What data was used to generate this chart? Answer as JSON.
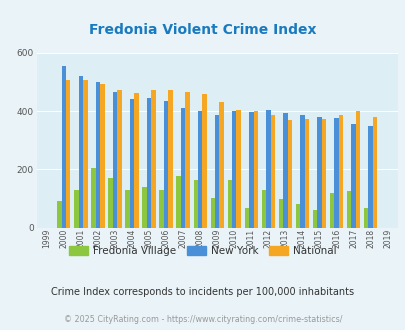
{
  "title": "Fredonia Violent Crime Index",
  "title_color": "#1a7abf",
  "years": [
    1999,
    2000,
    2001,
    2002,
    2003,
    2004,
    2005,
    2006,
    2007,
    2008,
    2009,
    2010,
    2011,
    2012,
    2013,
    2014,
    2015,
    2016,
    2017,
    2018,
    2019
  ],
  "fredonia": [
    0,
    90,
    130,
    205,
    170,
    130,
    140,
    130,
    178,
    162,
    102,
    163,
    68,
    130,
    100,
    83,
    60,
    120,
    125,
    68,
    0
  ],
  "new_york": [
    0,
    555,
    520,
    500,
    465,
    440,
    445,
    435,
    410,
    400,
    388,
    400,
    397,
    405,
    393,
    385,
    380,
    375,
    355,
    350,
    0
  ],
  "national": [
    0,
    507,
    507,
    494,
    473,
    463,
    471,
    474,
    465,
    458,
    430,
    404,
    400,
    387,
    368,
    372,
    373,
    386,
    399,
    379,
    0
  ],
  "fredonia_color": "#8dc63f",
  "newyork_color": "#4a90d9",
  "national_color": "#f5a623",
  "bg_color": "#eaf4f8",
  "plot_bg_color": "#ddeef5",
  "ylim": [
    0,
    600
  ],
  "yticks": [
    0,
    200,
    400,
    600
  ],
  "subtitle": "Crime Index corresponds to incidents per 100,000 inhabitants",
  "subtitle_color": "#333333",
  "footer": "© 2025 CityRating.com - https://www.cityrating.com/crime-statistics/",
  "footer_color": "#999999",
  "legend_labels": [
    "Fredonia Village",
    "New York",
    "National"
  ]
}
